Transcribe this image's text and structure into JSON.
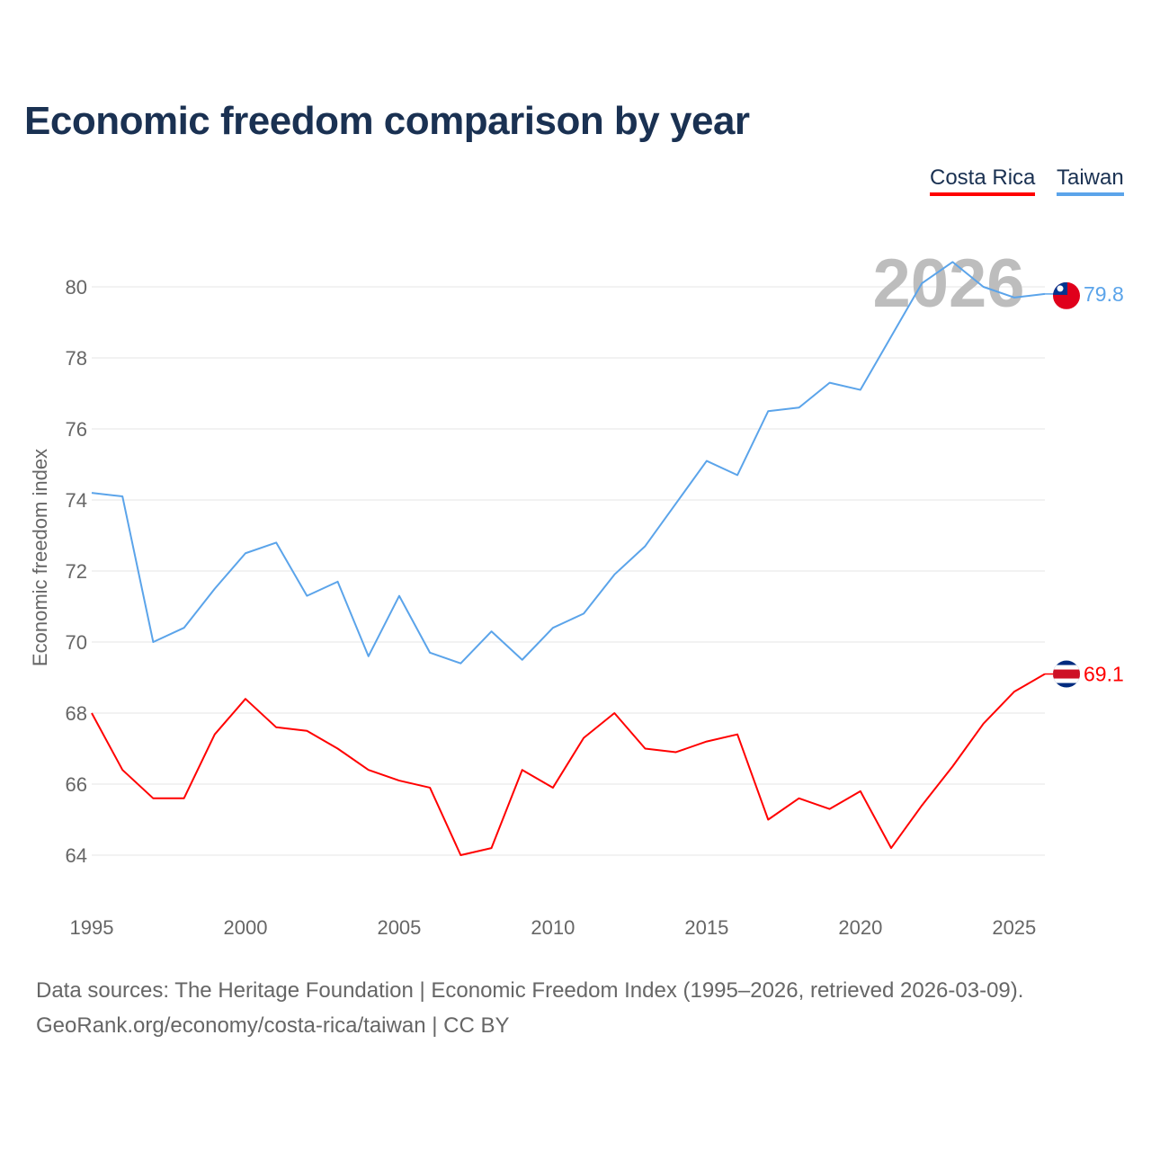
{
  "chart_data": {
    "type": "line",
    "title": "Economic freedom comparison by year",
    "ylabel": "Economic freedom index",
    "xlabel": "",
    "ylim": [
      62.6,
      81.5
    ],
    "xlim": [
      1995,
      2026
    ],
    "yticks": [
      64,
      66,
      68,
      70,
      72,
      74,
      76,
      78,
      80
    ],
    "xticks": [
      1995,
      2000,
      2005,
      2010,
      2015,
      2020,
      2025
    ],
    "grid": true,
    "legend_placement": "top-right",
    "current_year_label": "2026",
    "x": [
      1995,
      1996,
      1997,
      1998,
      1999,
      2000,
      2001,
      2002,
      2003,
      2004,
      2005,
      2006,
      2007,
      2008,
      2009,
      2010,
      2011,
      2012,
      2013,
      2014,
      2015,
      2016,
      2017,
      2018,
      2019,
      2020,
      2021,
      2022,
      2023,
      2024,
      2025,
      2026
    ],
    "series": [
      {
        "name": "Costa Rica",
        "color": "#ff0000",
        "end_label": "69.1",
        "values": [
          68.0,
          66.4,
          65.6,
          65.6,
          67.4,
          68.4,
          67.6,
          67.5,
          67.0,
          66.4,
          66.1,
          65.9,
          64.0,
          64.2,
          66.4,
          65.9,
          67.3,
          68.0,
          67.0,
          66.9,
          67.2,
          67.4,
          65.0,
          65.6,
          65.3,
          65.8,
          64.2,
          65.4,
          66.5,
          67.7,
          68.6,
          69.1
        ]
      },
      {
        "name": "Taiwan",
        "color": "#5ba4ea",
        "end_label": "79.8",
        "values": [
          74.2,
          74.1,
          70.0,
          70.4,
          71.5,
          72.5,
          72.8,
          71.3,
          71.7,
          69.6,
          71.3,
          69.7,
          69.4,
          70.3,
          69.5,
          70.4,
          70.8,
          71.9,
          72.7,
          73.9,
          75.1,
          74.7,
          76.5,
          76.6,
          77.3,
          77.1,
          78.6,
          80.1,
          80.7,
          80.0,
          79.7,
          79.8
        ]
      }
    ]
  },
  "footer": {
    "sources": "Data sources: The Heritage Foundation | Economic Freedom Index (1995–2026, retrieved 2026-03-09).",
    "credit": "GeoRank.org/economy/costa-rica/taiwan | CC BY"
  }
}
